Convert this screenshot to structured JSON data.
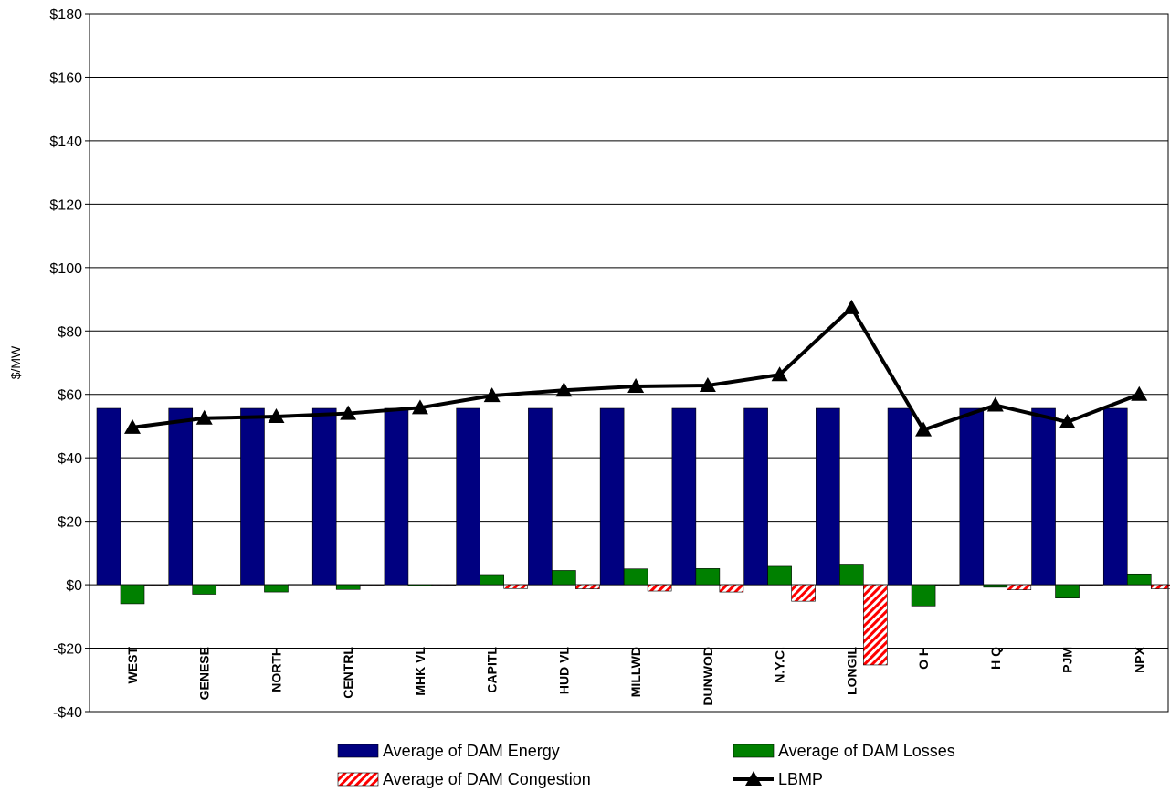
{
  "chart_data": {
    "type": "bar-line",
    "y_label": "$/MW",
    "categories": [
      "WEST",
      "GENESE",
      "NORTH",
      "CENTRL",
      "MHK VL",
      "CAPITL",
      "HUD VL",
      "MILLWD",
      "DUNWOD",
      "N.Y.C.",
      "LONGIL",
      "O H",
      "H Q",
      "PJM",
      "NPX"
    ],
    "series": [
      {
        "name": "Average of DAM Energy",
        "type": "bar",
        "color": "#000080",
        "values": [
          55.6,
          55.6,
          55.6,
          55.6,
          55.6,
          55.6,
          55.6,
          55.6,
          55.6,
          55.6,
          55.6,
          55.6,
          55.6,
          55.6,
          55.6
        ]
      },
      {
        "name": "Average of DAM Losses",
        "type": "bar",
        "color": "#008000",
        "values": [
          -6,
          -3,
          -2.3,
          -1.5,
          -0.3,
          3.2,
          4.5,
          5,
          5.1,
          5.8,
          6.5,
          -6.7,
          -0.8,
          -4.2,
          3.4
        ]
      },
      {
        "name": "Average of DAM Congestion",
        "type": "bar",
        "color": "#ff0000",
        "pattern": "hatch",
        "values": [
          0,
          0,
          0.1,
          0,
          0,
          -1.2,
          -1.3,
          -2,
          -2.3,
          -5.2,
          -25.3,
          0,
          -1.6,
          0,
          -1.3
        ]
      },
      {
        "name": "LBMP",
        "type": "line",
        "color": "#000000",
        "values": [
          49.6,
          52.5,
          53,
          54,
          55.8,
          59.6,
          61.3,
          62.5,
          62.8,
          66.2,
          87.3,
          48.8,
          56.6,
          51.3,
          60
        ]
      }
    ],
    "ylim": [
      -40,
      180
    ],
    "yticks": [
      {
        "value": -40,
        "label": "-$40"
      },
      {
        "value": -20,
        "label": "-$20"
      },
      {
        "value": 0,
        "label": "$0"
      },
      {
        "value": 20,
        "label": "$20"
      },
      {
        "value": 40,
        "label": "$40"
      },
      {
        "value": 60,
        "label": "$60"
      },
      {
        "value": 80,
        "label": "$80"
      },
      {
        "value": 100,
        "label": "$100"
      },
      {
        "value": 120,
        "label": "$120"
      },
      {
        "value": 140,
        "label": "$140"
      },
      {
        "value": 160,
        "label": "$160"
      },
      {
        "value": 180,
        "label": "$180"
      }
    ],
    "grid": true
  }
}
